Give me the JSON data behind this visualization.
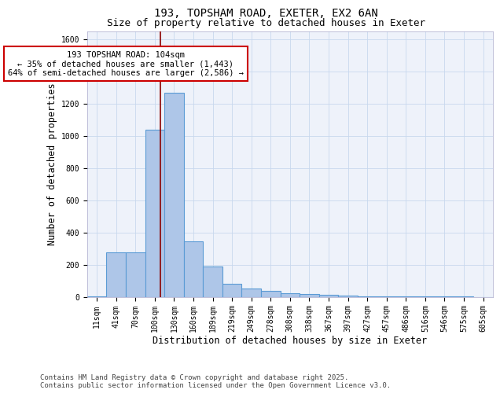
{
  "title_line1": "193, TOPSHAM ROAD, EXETER, EX2 6AN",
  "title_line2": "Size of property relative to detached houses in Exeter",
  "xlabel": "Distribution of detached houses by size in Exeter",
  "ylabel": "Number of detached properties",
  "categories": [
    "11sqm",
    "41sqm",
    "70sqm",
    "100sqm",
    "130sqm",
    "160sqm",
    "189sqm",
    "219sqm",
    "249sqm",
    "278sqm",
    "308sqm",
    "338sqm",
    "367sqm",
    "397sqm",
    "427sqm",
    "457sqm",
    "486sqm",
    "516sqm",
    "546sqm",
    "575sqm",
    "605sqm"
  ],
  "values": [
    2,
    275,
    275,
    1040,
    1270,
    345,
    190,
    80,
    50,
    35,
    22,
    15,
    10,
    5,
    3,
    3,
    2,
    2,
    1,
    1,
    0
  ],
  "bar_color": "#aec6e8",
  "bar_edge_color": "#5b9bd5",
  "bar_linewidth": 0.8,
  "grid_color": "#c8d8ee",
  "background_color": "#eef2fa",
  "annotation_text": "193 TOPSHAM ROAD: 104sqm\n← 35% of detached houses are smaller (1,443)\n64% of semi-detached houses are larger (2,586) →",
  "annotation_box_facecolor": "white",
  "annotation_box_edgecolor": "#cc0000",
  "vline_x": 3.3,
  "vline_color": "#8b0000",
  "ylim": [
    0,
    1650
  ],
  "yticks": [
    0,
    200,
    400,
    600,
    800,
    1000,
    1200,
    1400,
    1600
  ],
  "footer_line1": "Contains HM Land Registry data © Crown copyright and database right 2025.",
  "footer_line2": "Contains public sector information licensed under the Open Government Licence v3.0.",
  "title_fontsize": 10,
  "subtitle_fontsize": 9,
  "axis_label_fontsize": 8.5,
  "tick_fontsize": 7,
  "annotation_fontsize": 7.5,
  "footer_fontsize": 6.5
}
